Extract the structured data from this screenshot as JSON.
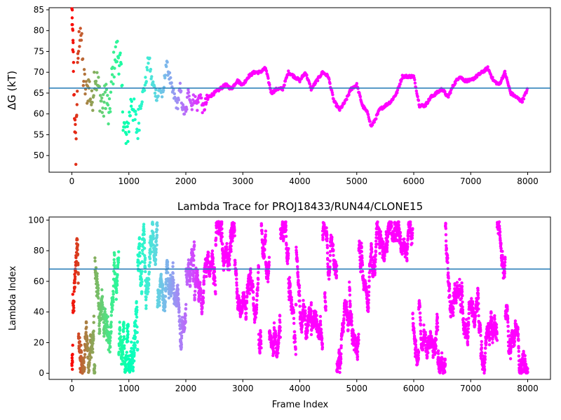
{
  "chart_data": [
    {
      "type": "scatter",
      "title": "",
      "xlabel": "",
      "ylabel": "ΔG (kT)",
      "xlim": [
        -400,
        8400
      ],
      "ylim": [
        46,
        85.5
      ],
      "xticks": [
        0,
        1000,
        2000,
        3000,
        4000,
        5000,
        6000,
        7000,
        8000
      ],
      "yticks": [
        50,
        55,
        60,
        65,
        70,
        75,
        80,
        85
      ],
      "hline": 66.2,
      "hline_color": "#1f77b4",
      "colormap": "rainbow (red = early frames, violet = late frames)",
      "description_points": [
        [
          0,
          84
        ],
        [
          10,
          80
        ],
        [
          20,
          76
        ],
        [
          30,
          70
        ],
        [
          50,
          58
        ],
        [
          70,
          51
        ],
        [
          90,
          64
        ],
        [
          110,
          74
        ],
        [
          150,
          82
        ],
        [
          200,
          69
        ],
        [
          250,
          65
        ],
        [
          300,
          67
        ],
        [
          350,
          62
        ],
        [
          400,
          70
        ],
        [
          450,
          67
        ],
        [
          500,
          64
        ],
        [
          550,
          61
        ],
        [
          600,
          66
        ],
        [
          650,
          58
        ],
        [
          700,
          68
        ],
        [
          750,
          73
        ],
        [
          800,
          75
        ],
        [
          850,
          72
        ],
        [
          900,
          60
        ],
        [
          950,
          53
        ],
        [
          1000,
          58
        ],
        [
          1050,
          64
        ],
        [
          1100,
          59
        ],
        [
          1150,
          56
        ],
        [
          1200,
          62
        ],
        [
          1250,
          65
        ],
        [
          1300,
          68
        ],
        [
          1350,
          74
        ],
        [
          1400,
          68
        ],
        [
          1450,
          66
        ],
        [
          1500,
          64
        ],
        [
          1550,
          66
        ],
        [
          1600,
          64
        ],
        [
          1650,
          72
        ],
        [
          1700,
          70
        ],
        [
          1750,
          66
        ],
        [
          1800,
          64
        ],
        [
          1850,
          62
        ],
        [
          1900,
          66
        ],
        [
          1950,
          61
        ],
        [
          2000,
          60
        ],
        [
          2050,
          66
        ],
        [
          2100,
          62
        ],
        [
          2150,
          64
        ],
        [
          2200,
          62
        ],
        [
          2250,
          65
        ],
        [
          2300,
          61
        ],
        [
          2400,
          64
        ],
        [
          2500,
          65
        ],
        [
          2600,
          66
        ],
        [
          2700,
          67
        ],
        [
          2800,
          66
        ],
        [
          2900,
          68
        ],
        [
          3000,
          67
        ],
        [
          3100,
          69
        ],
        [
          3200,
          70
        ],
        [
          3300,
          70
        ],
        [
          3400,
          71
        ],
        [
          3500,
          65
        ],
        [
          3600,
          66
        ],
        [
          3700,
          66
        ],
        [
          3800,
          70
        ],
        [
          3900,
          69
        ],
        [
          4000,
          68
        ],
        [
          4100,
          70
        ],
        [
          4200,
          66
        ],
        [
          4300,
          68
        ],
        [
          4400,
          70
        ],
        [
          4500,
          69
        ],
        [
          4600,
          63
        ],
        [
          4700,
          61
        ],
        [
          4800,
          63
        ],
        [
          4900,
          66
        ],
        [
          5000,
          67
        ],
        [
          5100,
          62
        ],
        [
          5200,
          60
        ],
        [
          5250,
          57
        ],
        [
          5300,
          58
        ],
        [
          5400,
          61
        ],
        [
          5500,
          62
        ],
        [
          5600,
          63
        ],
        [
          5700,
          65
        ],
        [
          5800,
          69
        ],
        [
          5900,
          69
        ],
        [
          6000,
          69
        ],
        [
          6100,
          62
        ],
        [
          6200,
          62
        ],
        [
          6300,
          64
        ],
        [
          6400,
          65
        ],
        [
          6500,
          66
        ],
        [
          6600,
          64
        ],
        [
          6700,
          67
        ],
        [
          6800,
          69
        ],
        [
          6900,
          68
        ],
        [
          7000,
          68
        ],
        [
          7100,
          69
        ],
        [
          7200,
          70
        ],
        [
          7300,
          71
        ],
        [
          7400,
          68
        ],
        [
          7500,
          67
        ],
        [
          7600,
          70
        ],
        [
          7700,
          65
        ],
        [
          7800,
          64
        ],
        [
          7900,
          63
        ],
        [
          8000,
          66
        ]
      ]
    },
    {
      "type": "scatter",
      "title": "Lambda Trace for PROJ18433/RUN44/CLONE15",
      "xlabel": "Frame Index",
      "ylabel": "Lambda Index",
      "xlim": [
        -400,
        8400
      ],
      "ylim": [
        -4,
        102
      ],
      "xticks": [
        0,
        1000,
        2000,
        3000,
        4000,
        5000,
        6000,
        7000,
        8000
      ],
      "yticks": [
        0,
        20,
        40,
        60,
        80,
        100
      ],
      "hline": 68,
      "hline_color": "#1f77b4",
      "colormap": "rainbow (red = early frames, violet = late frames)",
      "range": {
        "frames": [
          0,
          8000
        ],
        "lambda": [
          0,
          99
        ]
      }
    }
  ]
}
